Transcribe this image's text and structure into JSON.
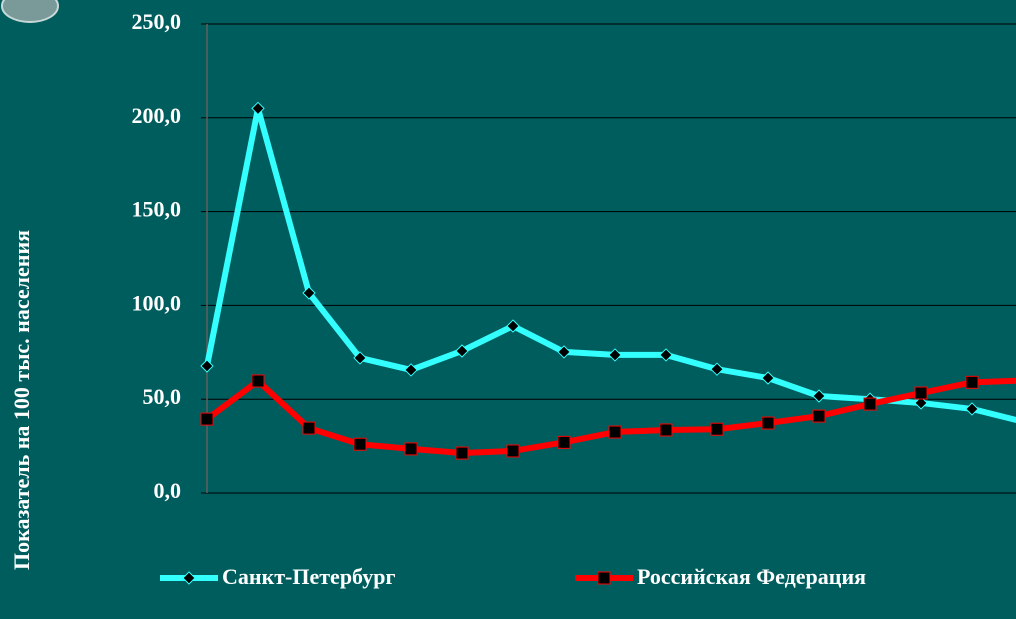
{
  "chart_data": {
    "type": "line",
    "y_axis_label": "Показатель на 100 тыс. населения",
    "categories": [
      null,
      null,
      null,
      null,
      null,
      null,
      null,
      null,
      null,
      null,
      null,
      null,
      null,
      null,
      null,
      null,
      null
    ],
    "series": [
      {
        "name": "Санкт-Петербург",
        "color": "#33ffff",
        "marker": "diamond",
        "values": [
          67.7,
          205,
          106.6,
          72,
          65.6,
          75.7,
          89,
          75.2,
          73.6,
          73.6,
          66,
          61.3,
          51.7,
          50,
          48,
          44.8,
          38
        ]
      },
      {
        "name": "Российская Федерация",
        "color": "#ff0000",
        "marker": "square",
        "values": [
          39.4,
          59.7,
          34.6,
          26,
          23.5,
          21.3,
          22.4,
          27,
          32.5,
          33.6,
          34,
          37.3,
          41,
          47.4,
          53.3,
          59,
          60
        ]
      }
    ],
    "ylim": [
      0,
      250
    ],
    "yticks": [
      {
        "value": 0,
        "label": "0,0"
      },
      {
        "value": 50,
        "label": "50,0"
      },
      {
        "value": 100,
        "label": "100,0"
      },
      {
        "value": 150,
        "label": "150,0"
      },
      {
        "value": 200,
        "label": "200,0"
      },
      {
        "value": 250,
        "label": "250,0"
      }
    ],
    "grid": true,
    "legend": "bottom"
  }
}
